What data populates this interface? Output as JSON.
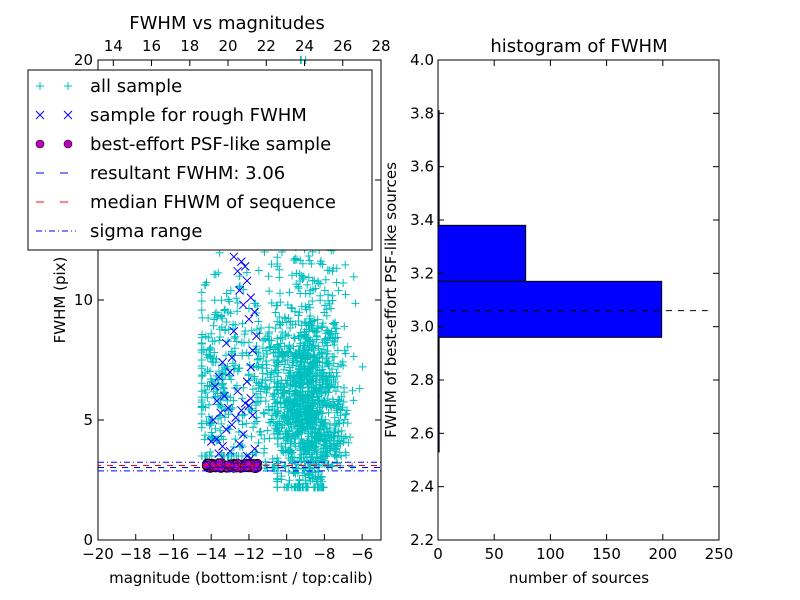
{
  "chart_data": [
    {
      "type": "scatter",
      "title": "FWHM vs magnitudes",
      "xlabel": "magnitude (bottom:isnt / top:calib)",
      "ylabel": "FWHM (pix)",
      "xlim": [
        -20,
        -5
      ],
      "ylim": [
        0,
        20
      ],
      "x_ticks": [
        -20,
        -18,
        -16,
        -14,
        -12,
        -10,
        -8,
        -6
      ],
      "x_tick_labels": [
        "−20",
        "−18",
        "−16",
        "−14",
        "−12",
        "−10",
        "−8",
        "−6"
      ],
      "y_ticks": [
        0,
        5,
        10,
        15,
        20
      ],
      "y_tick_labels": [
        "0",
        "5",
        "10",
        "15",
        "20"
      ],
      "top_axis": {
        "xlim": [
          13.2,
          28
        ],
        "ticks": [
          14,
          16,
          18,
          20,
          22,
          24,
          26,
          28
        ],
        "tick_labels": [
          "14",
          "16",
          "18",
          "20",
          "22",
          "24",
          "26",
          "28"
        ]
      },
      "grid": false,
      "legend_placement": "upper-left",
      "series": [
        {
          "name": "all sample",
          "marker": "+",
          "color": "#00bfbf",
          "clusters": [
            {
              "x_range": [
                -10.5,
                -5.2
              ],
              "y_range": [
                2.2,
                20
              ],
              "center": [
                -8.8,
                5.5
              ],
              "count": 1300
            },
            {
              "x_range": [
                -14.5,
                -11.5
              ],
              "y_range": [
                3.5,
                14
              ],
              "center": [
                -13.5,
                6.5
              ],
              "count": 260
            },
            {
              "x_range": [
                -12,
                -9.5
              ],
              "y_range": [
                3,
                12
              ],
              "center": [
                -11,
                6
              ],
              "count": 200
            }
          ]
        },
        {
          "name": "sample for rough FWHM",
          "marker": "x",
          "color": "#0000ff",
          "points": [
            [
              -12.8,
              11.8
            ],
            [
              -12.4,
              11.6
            ],
            [
              -12.2,
              11.4
            ],
            [
              -12.6,
              11.2
            ],
            [
              -12.1,
              10.8
            ],
            [
              -12.5,
              10.4
            ],
            [
              -11.9,
              10.1
            ],
            [
              -12.3,
              9.8
            ],
            [
              -11.7,
              9.5
            ],
            [
              -12.0,
              9.2
            ],
            [
              -12.8,
              8.7
            ],
            [
              -11.6,
              8.5
            ],
            [
              -13.2,
              8.2
            ],
            [
              -11.8,
              7.9
            ],
            [
              -12.9,
              7.6
            ],
            [
              -13.4,
              7.4
            ],
            [
              -11.9,
              7.2
            ],
            [
              -13.0,
              7.0
            ],
            [
              -13.6,
              6.8
            ],
            [
              -12.1,
              6.6
            ],
            [
              -13.8,
              6.4
            ],
            [
              -12.6,
              6.2
            ],
            [
              -13.3,
              6.0
            ],
            [
              -11.9,
              5.9
            ],
            [
              -13.7,
              5.8
            ],
            [
              -12.2,
              5.7
            ],
            [
              -12.0,
              5.6
            ],
            [
              -13.1,
              5.5
            ],
            [
              -12.4,
              5.4
            ],
            [
              -13.5,
              5.3
            ],
            [
              -11.8,
              5.2
            ],
            [
              -12.7,
              5.1
            ],
            [
              -13.9,
              5.0
            ],
            [
              -12.9,
              4.8
            ],
            [
              -13.2,
              4.6
            ],
            [
              -12.3,
              4.4
            ],
            [
              -13.7,
              4.2
            ],
            [
              -14.0,
              4.1
            ],
            [
              -12.5,
              4.0
            ],
            [
              -13.4,
              3.9
            ],
            [
              -11.7,
              3.8
            ],
            [
              -13.0,
              3.7
            ],
            [
              -11.9,
              3.4
            ],
            [
              -13.6,
              3.6
            ],
            [
              -12.1,
              3.5
            ]
          ]
        },
        {
          "name": "best-effort PSF-like sample",
          "marker": "o",
          "color": "#bf00bf",
          "x_range": [
            -14.3,
            -11.5
          ],
          "y_range": [
            2.95,
            3.25
          ],
          "count": 220
        },
        {
          "name": "resultant FWHM: 3.06",
          "style": "dashed",
          "color": "#0000ff",
          "y": 3.06
        },
        {
          "name": "median FHWM of sequence",
          "style": "dashed",
          "color": "#ff0000",
          "y": 3.06
        },
        {
          "name": "sigma range",
          "style": "dashdot",
          "color": "#0000ff",
          "y": [
            2.88,
            3.24
          ]
        }
      ]
    },
    {
      "type": "bar",
      "orientation": "horizontal",
      "title": "histogram of FWHM",
      "xlabel": "number of sources",
      "ylabel": "FWHM of best-effort PSF-like sources",
      "xlim": [
        0,
        250
      ],
      "ylim": [
        2.2,
        4.0
      ],
      "x_ticks": [
        0,
        50,
        100,
        150,
        200,
        250
      ],
      "x_tick_labels": [
        "0",
        "50",
        "100",
        "150",
        "200",
        "250"
      ],
      "y_ticks": [
        2.2,
        2.4,
        2.6,
        2.8,
        3.0,
        3.2,
        3.4,
        3.6,
        3.8,
        4.0
      ],
      "y_tick_labels": [
        "2.2",
        "2.4",
        "2.6",
        "2.8",
        "3.0",
        "3.2",
        "3.4",
        "3.6",
        "3.8",
        "4.0"
      ],
      "grid": false,
      "bar_color": "#0000ff",
      "bins": [
        {
          "from": 2.53,
          "to": 2.74,
          "count": 1
        },
        {
          "from": 2.74,
          "to": 2.96,
          "count": 1
        },
        {
          "from": 2.96,
          "to": 3.17,
          "count": 199
        },
        {
          "from": 3.17,
          "to": 3.38,
          "count": 78
        },
        {
          "from": 3.38,
          "to": 3.59,
          "count": 1
        },
        {
          "from": 3.59,
          "to": 3.81,
          "count": 1
        }
      ],
      "reference_line": {
        "style": "dashed",
        "color": "#000000",
        "y": 3.06,
        "x_range": [
          0,
          240
        ]
      }
    }
  ]
}
